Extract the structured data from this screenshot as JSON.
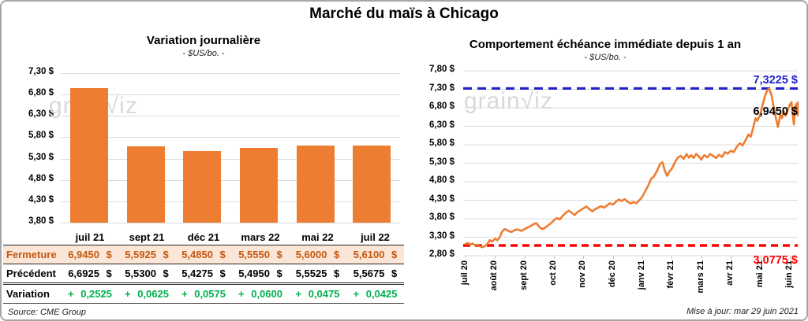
{
  "title": "Marché du maïs à Chicago",
  "watermark": "grain√iz",
  "colors": {
    "orange": "#ED7D31",
    "blue": "#2121CC",
    "red": "#FF0000",
    "green": "#00B050",
    "close_text": "#C45911",
    "close_bg": "#FBE5D6",
    "grid": "#DBDBDB",
    "watermark": "#D9D9D9",
    "border": "#A6A6A6"
  },
  "left_chart": {
    "title": "Variation journalière",
    "subtitle": "- $US/bo. -"
  },
  "right_chart": {
    "title": "Comportement échéance immédiate depuis 1 an",
    "subtitle": "- $US/bo. -"
  },
  "table": {
    "columns": [
      "juil 21",
      "sept 21",
      "déc 21",
      "mars 22",
      "mai 22",
      "juil 22"
    ],
    "rows": [
      {
        "label": "Fermeture",
        "style": "close",
        "values": [
          "6,9450 $",
          "5,5925 $",
          "5,4850 $",
          "5,5550 $",
          "5,6000 $",
          "5,6100 $"
        ]
      },
      {
        "label": "Précédent",
        "style": "previous",
        "values": [
          "6,6925 $",
          "5,5300 $",
          "5,4275 $",
          "5,4950 $",
          "5,5525 $",
          "5,5675 $"
        ]
      },
      {
        "label": "Variation",
        "style": "variation",
        "values": [
          "+ 0,2525",
          "+ 0,0625",
          "+ 0,0575",
          "+ 0,0600",
          "+ 0,0475",
          "+ 0,0425"
        ]
      }
    ]
  },
  "footer": {
    "source": "Source: CME Group",
    "updated": "Mise à jour: mar 29 juin 2021"
  },
  "chart_data": [
    {
      "type": "bar",
      "title": "Variation journalière",
      "subtitle": "- $US/bo. -",
      "categories": [
        "juil 21",
        "sept 21",
        "déc 21",
        "mars 22",
        "mai 22",
        "juil 22"
      ],
      "values": [
        6.945,
        5.5925,
        5.485,
        5.555,
        5.6,
        5.61
      ],
      "ylim": [
        3.8,
        7.3
      ],
      "ytick_step": 0.5,
      "ytick_labels": [
        "7,30 $",
        "6,80 $",
        "6,30 $",
        "5,80 $",
        "5,30 $",
        "4,80 $",
        "4,30 $",
        "3,80 $"
      ],
      "bar_color": "#ED7D31",
      "grid": true
    },
    {
      "type": "line",
      "title": "Comportement échéance immédiate depuis 1 an",
      "subtitle": "- $US/bo. -",
      "x_ticks": [
        "juil 20",
        "août 20",
        "sept 20",
        "oct 20",
        "nov 20",
        "déc 20",
        "janv 21",
        "févr 21",
        "mars 21",
        "avr 21",
        "mai 21",
        "juin 21"
      ],
      "ylim": [
        2.8,
        7.8
      ],
      "ytick_step": 0.5,
      "ytick_labels": [
        "7,80 $",
        "7,30 $",
        "6,80 $",
        "6,30 $",
        "5,80 $",
        "5,30 $",
        "4,80 $",
        "4,30 $",
        "3,80 $",
        "3,30 $",
        "2,80 $"
      ],
      "line_color": "#ED7D31",
      "grid": true,
      "max_line": {
        "value": 7.3225,
        "label": "7,3225 $",
        "color": "#2121CC"
      },
      "min_line": {
        "value": 3.0775,
        "label": "3,0775 $",
        "color": "#FF0000"
      },
      "last_point": {
        "value": 6.945,
        "label": "6,9450 $"
      },
      "points": [
        [
          0.0,
          3.12
        ],
        [
          0.08,
          3.14
        ],
        [
          0.16,
          3.1
        ],
        [
          0.24,
          3.13
        ],
        [
          0.32,
          3.08
        ],
        [
          0.4,
          3.1
        ],
        [
          0.5,
          3.05
        ],
        [
          0.58,
          3.03
        ],
        [
          0.66,
          3.06
        ],
        [
          0.74,
          3.12
        ],
        [
          0.82,
          3.22
        ],
        [
          0.9,
          3.18
        ],
        [
          1.0,
          3.26
        ],
        [
          1.08,
          3.22
        ],
        [
          1.16,
          3.3
        ],
        [
          1.24,
          3.45
        ],
        [
          1.32,
          3.52
        ],
        [
          1.4,
          3.5
        ],
        [
          1.48,
          3.46
        ],
        [
          1.56,
          3.44
        ],
        [
          1.64,
          3.48
        ],
        [
          1.72,
          3.51
        ],
        [
          1.8,
          3.5
        ],
        [
          1.9,
          3.47
        ],
        [
          2.0,
          3.52
        ],
        [
          2.1,
          3.56
        ],
        [
          2.2,
          3.6
        ],
        [
          2.3,
          3.65
        ],
        [
          2.4,
          3.68
        ],
        [
          2.5,
          3.58
        ],
        [
          2.6,
          3.52
        ],
        [
          2.7,
          3.56
        ],
        [
          2.8,
          3.62
        ],
        [
          2.9,
          3.68
        ],
        [
          3.0,
          3.76
        ],
        [
          3.1,
          3.82
        ],
        [
          3.2,
          3.78
        ],
        [
          3.3,
          3.88
        ],
        [
          3.4,
          3.96
        ],
        [
          3.5,
          4.02
        ],
        [
          3.6,
          3.96
        ],
        [
          3.7,
          3.9
        ],
        [
          3.8,
          3.98
        ],
        [
          3.9,
          4.03
        ],
        [
          4.0,
          4.08
        ],
        [
          4.1,
          4.13
        ],
        [
          4.2,
          4.06
        ],
        [
          4.3,
          4.0
        ],
        [
          4.4,
          4.06
        ],
        [
          4.5,
          4.1
        ],
        [
          4.6,
          4.14
        ],
        [
          4.7,
          4.1
        ],
        [
          4.8,
          4.16
        ],
        [
          4.9,
          4.22
        ],
        [
          5.0,
          4.18
        ],
        [
          5.1,
          4.26
        ],
        [
          5.2,
          4.32
        ],
        [
          5.3,
          4.28
        ],
        [
          5.4,
          4.33
        ],
        [
          5.5,
          4.26
        ],
        [
          5.6,
          4.21
        ],
        [
          5.7,
          4.25
        ],
        [
          5.8,
          4.22
        ],
        [
          5.9,
          4.3
        ],
        [
          6.0,
          4.4
        ],
        [
          6.1,
          4.55
        ],
        [
          6.2,
          4.7
        ],
        [
          6.3,
          4.88
        ],
        [
          6.4,
          4.95
        ],
        [
          6.5,
          5.1
        ],
        [
          6.6,
          5.28
        ],
        [
          6.68,
          5.33
        ],
        [
          6.76,
          5.1
        ],
        [
          6.84,
          4.96
        ],
        [
          6.92,
          5.08
        ],
        [
          7.0,
          5.15
        ],
        [
          7.1,
          5.32
        ],
        [
          7.2,
          5.45
        ],
        [
          7.3,
          5.5
        ],
        [
          7.4,
          5.42
        ],
        [
          7.5,
          5.55
        ],
        [
          7.58,
          5.45
        ],
        [
          7.66,
          5.52
        ],
        [
          7.74,
          5.44
        ],
        [
          7.82,
          5.55
        ],
        [
          7.9,
          5.5
        ],
        [
          8.0,
          5.4
        ],
        [
          8.1,
          5.52
        ],
        [
          8.2,
          5.46
        ],
        [
          8.3,
          5.55
        ],
        [
          8.4,
          5.5
        ],
        [
          8.5,
          5.44
        ],
        [
          8.6,
          5.53
        ],
        [
          8.7,
          5.47
        ],
        [
          8.8,
          5.6
        ],
        [
          8.9,
          5.56
        ],
        [
          9.0,
          5.64
        ],
        [
          9.1,
          5.6
        ],
        [
          9.2,
          5.74
        ],
        [
          9.3,
          5.84
        ],
        [
          9.4,
          5.78
        ],
        [
          9.5,
          5.92
        ],
        [
          9.6,
          6.08
        ],
        [
          9.68,
          6.02
        ],
        [
          9.76,
          6.26
        ],
        [
          9.84,
          6.52
        ],
        [
          9.9,
          6.45
        ],
        [
          10.0,
          6.62
        ],
        [
          10.08,
          6.88
        ],
        [
          10.16,
          7.12
        ],
        [
          10.24,
          7.28
        ],
        [
          10.3,
          7.32
        ],
        [
          10.38,
          7.15
        ],
        [
          10.46,
          6.8
        ],
        [
          10.54,
          6.48
        ],
        [
          10.6,
          6.28
        ],
        [
          10.68,
          6.62
        ],
        [
          10.74,
          6.52
        ],
        [
          10.8,
          6.7
        ],
        [
          10.86,
          6.58
        ],
        [
          10.92,
          6.72
        ],
        [
          11.0,
          6.88
        ],
        [
          11.06,
          6.95
        ],
        [
          11.1,
          6.62
        ],
        [
          11.14,
          6.35
        ],
        [
          11.18,
          6.82
        ],
        [
          11.22,
          6.9
        ],
        [
          11.26,
          6.68
        ],
        [
          11.3,
          6.78
        ],
        [
          11.34,
          6.6
        ],
        [
          11.38,
          6.92
        ],
        [
          11.42,
          6.945
        ]
      ]
    }
  ]
}
